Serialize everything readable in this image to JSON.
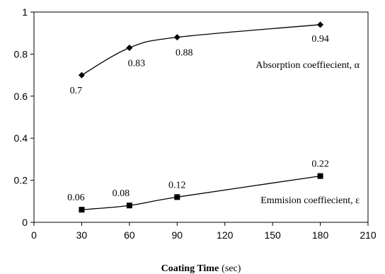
{
  "chart_data": {
    "type": "line",
    "title": "",
    "xlabel_bold": "Coating Time",
    "xlabel_unit": "(sec)",
    "ylabel": "",
    "xlim": [
      0,
      210
    ],
    "ylim": [
      0,
      1
    ],
    "xticks": [
      0,
      30,
      60,
      90,
      120,
      150,
      180,
      210
    ],
    "yticks": [
      0,
      0.2,
      0.4,
      0.6,
      0.8,
      1
    ],
    "ytick_labels": [
      "0",
      "0.2",
      "0.4",
      "0.6",
      "0.8",
      "1"
    ],
    "grid": false,
    "legend": "none",
    "series": [
      {
        "label": "Absorption coeffiecient, α",
        "marker": "diamond",
        "color": "#000000",
        "x": [
          30,
          60,
          90,
          180
        ],
        "y": [
          0.7,
          0.83,
          0.88,
          0.94
        ],
        "data_labels": [
          "0.7",
          "0.83",
          "0.88",
          "0.94"
        ]
      },
      {
        "label": "Emmision coeffiecient, ε",
        "marker": "square",
        "color": "#000000",
        "x": [
          30,
          60,
          90,
          180
        ],
        "y": [
          0.06,
          0.08,
          0.12,
          0.22
        ],
        "data_labels": [
          "0.06",
          "0.08",
          "0.12",
          "0.22"
        ]
      }
    ]
  }
}
